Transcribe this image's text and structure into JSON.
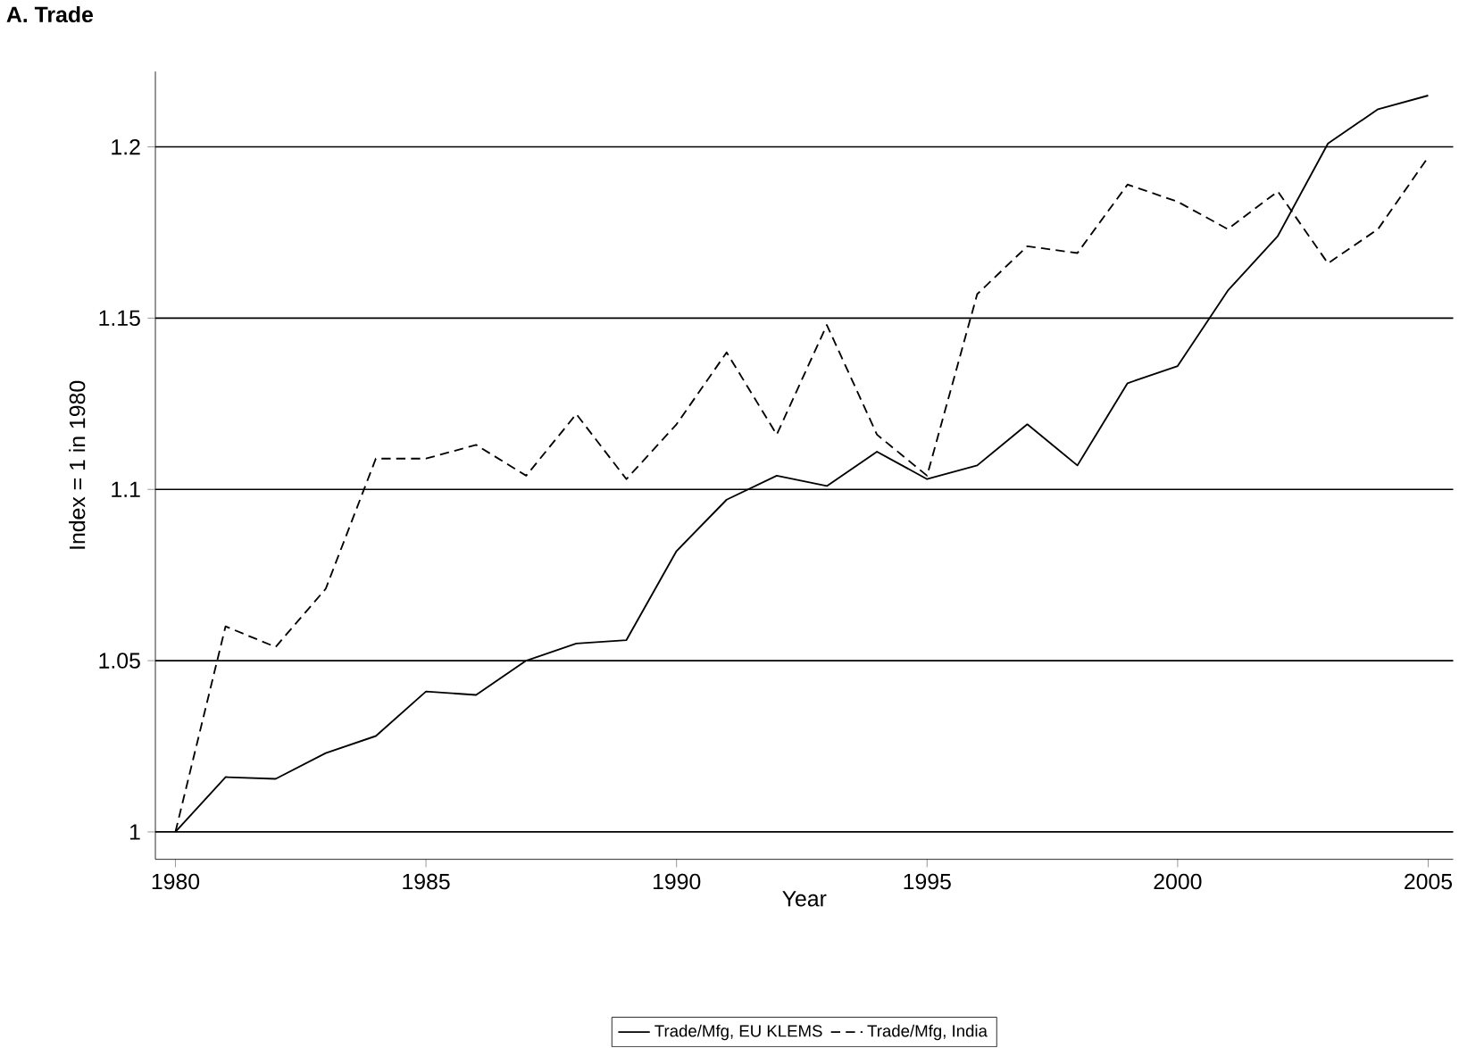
{
  "chart_data": {
    "type": "line",
    "title": "A. Trade",
    "xlabel": "Year",
    "ylabel": "Index = 1 in 1980",
    "x": [
      1980,
      1981,
      1982,
      1983,
      1984,
      1985,
      1986,
      1987,
      1988,
      1989,
      1990,
      1991,
      1992,
      1993,
      1994,
      1995,
      1996,
      1997,
      1998,
      1999,
      2000,
      2001,
      2002,
      2003,
      2004,
      2005
    ],
    "series": [
      {
        "name": "Trade/Mfg, EU KLEMS",
        "color": "#000000",
        "line_style": "solid",
        "values": [
          1.0,
          1.016,
          1.0155,
          1.023,
          1.028,
          1.041,
          1.04,
          1.05,
          1.055,
          1.056,
          1.082,
          1.097,
          1.104,
          1.101,
          1.111,
          1.103,
          1.107,
          1.119,
          1.107,
          1.131,
          1.136,
          1.158,
          1.174,
          1.201,
          1.211,
          1.215
        ]
      },
      {
        "name": "Trade/Mfg, India",
        "color": "#000000",
        "line_style": "dashed",
        "values": [
          1.0,
          1.06,
          1.054,
          1.071,
          1.109,
          1.109,
          1.113,
          1.104,
          1.122,
          1.103,
          1.119,
          1.14,
          1.116,
          1.148,
          1.116,
          1.104,
          1.157,
          1.171,
          1.169,
          1.189,
          1.184,
          1.176,
          1.187,
          1.166,
          1.176,
          1.197
        ]
      }
    ],
    "xlim": [
      1979.6,
      2005.5
    ],
    "ylim": [
      0.992,
      1.222
    ],
    "xticks": [
      1980,
      1985,
      1990,
      1995,
      2000,
      2005
    ],
    "yticks": [
      1,
      1.05,
      1.1,
      1.15,
      1.2
    ],
    "grid": "y",
    "legend": "bottom",
    "marker": "none"
  }
}
